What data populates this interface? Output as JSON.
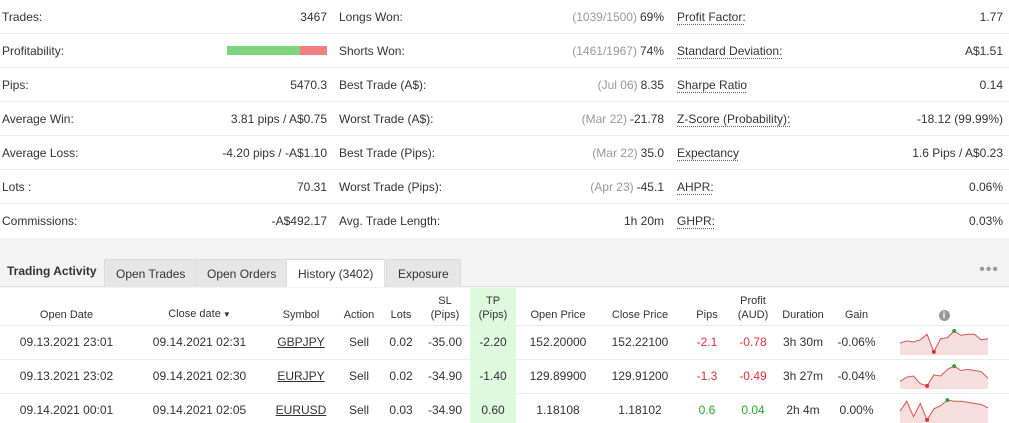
{
  "stats": {
    "col1": [
      {
        "label": "Trades:",
        "value": "3467"
      },
      {
        "label": "Profitability:",
        "win_fraction": 0.73
      },
      {
        "label": "Pips:",
        "value": "5470.3"
      },
      {
        "label": "Average Win:",
        "value": "3.81 pips / A$0.75"
      },
      {
        "label": "Average Loss:",
        "value": "-4.20 pips / -A$1.10"
      },
      {
        "label": "Lots :",
        "value": "70.31"
      },
      {
        "label": "Commissions:",
        "value": "-A$492.17"
      }
    ],
    "col2": [
      {
        "label": "Longs Won:",
        "sub": "(1039/1500)",
        "value": "69%"
      },
      {
        "label": "Shorts Won:",
        "sub": "(1461/1967)",
        "value": "74%"
      },
      {
        "label": "Best Trade (A$):",
        "sub": "(Jul 06)",
        "value": "8.35"
      },
      {
        "label": "Worst Trade (A$):",
        "sub": "(Mar 22)",
        "value": "-21.78"
      },
      {
        "label": "Best Trade (Pips):",
        "sub": "(Mar 22)",
        "value": "35.0"
      },
      {
        "label": "Worst Trade (Pips):",
        "sub": "(Apr 23)",
        "value": "-45.1"
      },
      {
        "label": "Avg. Trade Length:",
        "sub": "",
        "value": "1h 20m"
      }
    ],
    "col3": [
      {
        "label": "Profit Factor:",
        "value": "1.77"
      },
      {
        "label": "Standard Deviation:",
        "value": "A$1.51"
      },
      {
        "label": "Sharpe Ratio",
        "value": "0.14"
      },
      {
        "label": "Z-Score (Probability):",
        "value": "-18.12 (99.99%)"
      },
      {
        "label": "Expectancy",
        "value": "1.6 Pips / A$0.23"
      },
      {
        "label": "AHPR:",
        "value": "0.06%"
      },
      {
        "label": "GHPR:",
        "value": "0.03%"
      }
    ]
  },
  "activity": {
    "title": "Trading Activity",
    "tabs": [
      "Open Trades",
      "Open Orders",
      "History (3402)",
      "Exposure"
    ],
    "active_tab": 2,
    "more_glyph": "•••"
  },
  "table": {
    "headers": {
      "open_date": "Open Date",
      "close_date": "Close date",
      "sort_glyph": "▼",
      "symbol": "Symbol",
      "action": "Action",
      "lots": "Lots",
      "sl_1": "SL",
      "sl_2": "(Pips)",
      "tp_1": "TP",
      "tp_2": "(Pips)",
      "open_price": "Open Price",
      "close_price": "Close Price",
      "pips": "Pips",
      "profit_1": "Profit",
      "profit_2": "(AUD)",
      "duration": "Duration",
      "gain": "Gain",
      "info_glyph": "i"
    },
    "rows": [
      {
        "open_date": "09.13.2021 23:01",
        "close_date": "09.14.2021 02:31",
        "symbol": "GBPJPY",
        "action": "Sell",
        "lots": "0.02",
        "sl": "-35.00",
        "tp": "-2.20",
        "open_price": "152.20000",
        "close_price": "152.22100",
        "pips": "-2.1",
        "profit": "-0.78",
        "duration": "3h 30m",
        "gain": "-0.06%",
        "positive": false
      },
      {
        "open_date": "09.13.2021 23:02",
        "close_date": "09.14.2021 02:30",
        "symbol": "EURJPY",
        "action": "Sell",
        "lots": "0.02",
        "sl": "-34.90",
        "tp": "-1.40",
        "open_price": "129.89900",
        "close_price": "129.91200",
        "pips": "-1.3",
        "profit": "-0.49",
        "duration": "3h 27m",
        "gain": "-0.04%",
        "positive": false
      },
      {
        "open_date": "09.14.2021 00:01",
        "close_date": "09.14.2021 02:05",
        "symbol": "EURUSD",
        "action": "Sell",
        "lots": "0.03",
        "sl": "-34.90",
        "tp": "0.60",
        "open_price": "1.18108",
        "close_price": "1.18102",
        "pips": "0.6",
        "profit": "0.04",
        "duration": "2h 4m",
        "gain": "0.00%",
        "positive": true
      }
    ]
  },
  "colors": {
    "negative": "#e0303a",
    "positive": "#2aa82a",
    "tp_highlight": "#ddfadd",
    "win_bar": "#7dd67d",
    "loss_bar": "#f08080",
    "spark_fill": "#f6dede",
    "spark_line": "#d9534f",
    "spark_max": "#2aa82a",
    "spark_min": "#e0303a"
  }
}
